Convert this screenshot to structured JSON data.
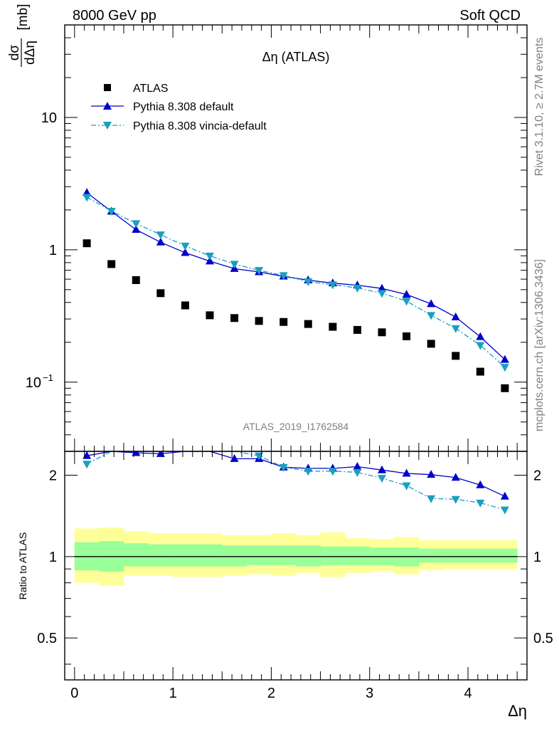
{
  "header": {
    "energy": "8000 GeV pp",
    "category": "Soft QCD"
  },
  "side_text": {
    "rivet": "Rivet 3.1.10, ≥ 2.7M events",
    "mcplots": "mcplots.cern.ch [arXiv:1306.3436]"
  },
  "chart_data": {
    "type": "line",
    "title": "Δη (ATLAS)",
    "analysis_id": "ATLAS_2019_I1762584",
    "xlabel": "Δη",
    "ylabel": "dσ/dΔη [mb]",
    "ylabel_parts": {
      "num": "dσ",
      "den": "dΔη",
      "unit": "[mb]"
    },
    "ratio_ylabel": "Ratio to ATLAS",
    "xlim": [
      -0.1,
      4.6
    ],
    "ylim": [
      0.03,
      50
    ],
    "yscale": "log",
    "ratio_ylim": [
      0.35,
      2.45
    ],
    "ratio_yscale": "log",
    "x_ticks": [
      {
        "value": 0,
        "label": "0"
      },
      {
        "value": 1,
        "label": "1"
      },
      {
        "value": 2,
        "label": "2"
      },
      {
        "value": 3,
        "label": "3"
      },
      {
        "value": 4,
        "label": "4"
      }
    ],
    "y_ticks": [
      {
        "value": 10,
        "label": "10"
      },
      {
        "value": 1,
        "label": "1"
      },
      {
        "value": 0.1,
        "label": "10",
        "sup": "−1"
      }
    ],
    "ratio_ticks": [
      {
        "value": 2,
        "label": "2"
      },
      {
        "value": 1,
        "label": "1"
      },
      {
        "value": 0.5,
        "label": "0.5"
      }
    ],
    "x": [
      0.125,
      0.375,
      0.625,
      0.875,
      1.125,
      1.375,
      1.625,
      1.875,
      2.125,
      2.375,
      2.625,
      2.875,
      3.125,
      3.375,
      3.625,
      3.875,
      4.125,
      4.375
    ],
    "bin_edges": [
      0,
      0.25,
      0.5,
      0.75,
      1.0,
      1.25,
      1.5,
      1.75,
      2.0,
      2.25,
      2.5,
      2.75,
      3.0,
      3.25,
      3.5,
      3.75,
      4.0,
      4.25,
      4.5
    ],
    "series": [
      {
        "name": "ATLAS",
        "style": "square",
        "color": "#000000",
        "values": [
          1.12,
          0.78,
          0.59,
          0.47,
          0.38,
          0.32,
          0.305,
          0.29,
          0.285,
          0.275,
          0.262,
          0.248,
          0.238,
          0.222,
          0.195,
          0.158,
          0.12,
          0.09
        ]
      },
      {
        "name": "Pythia 8.308 default",
        "style": "triangle-up",
        "color": "#0000cc",
        "values": [
          2.7,
          1.95,
          1.42,
          1.14,
          0.95,
          0.82,
          0.72,
          0.68,
          0.63,
          0.59,
          0.56,
          0.54,
          0.51,
          0.46,
          0.39,
          0.31,
          0.22,
          0.148
        ]
      },
      {
        "name": "Pythia 8.308 vincia-default",
        "style": "triangle-down",
        "color": "#1a9fc0",
        "values": [
          2.5,
          1.96,
          1.58,
          1.3,
          1.07,
          0.9,
          0.78,
          0.7,
          0.64,
          0.575,
          0.545,
          0.515,
          0.47,
          0.41,
          0.32,
          0.255,
          0.19,
          0.13
        ]
      }
    ],
    "ratio_series": [
      {
        "name": "Pythia 8.308 default",
        "color": "#0000cc",
        "style": "triangle-up",
        "values": [
          2.36,
          2.47,
          2.42,
          2.4,
          2.47,
          2.52,
          2.3,
          2.3,
          2.14,
          2.12,
          2.12,
          2.15,
          2.09,
          2.03,
          2.01,
          1.96,
          1.84,
          1.67
        ]
      },
      {
        "name": "Pythia 8.308 vincia-default",
        "color": "#1a9fc0",
        "style": "triangle-down",
        "values": [
          2.2,
          2.48,
          2.65,
          2.7,
          2.8,
          2.8,
          2.55,
          2.36,
          2.14,
          2.07,
          2.07,
          2.05,
          1.95,
          1.83,
          1.64,
          1.63,
          1.58,
          1.49
        ]
      }
    ],
    "ratio_reference": 1,
    "uncertainty_bands": {
      "stat_color": "#99ff99",
      "total_color": "#ffff99",
      "stat": [
        [
          0.89,
          1.13
        ],
        [
          0.88,
          1.14
        ],
        [
          0.92,
          1.12
        ],
        [
          0.92,
          1.11
        ],
        [
          0.92,
          1.11
        ],
        [
          0.92,
          1.11
        ],
        [
          0.92,
          1.1
        ],
        [
          0.93,
          1.1
        ],
        [
          0.93,
          1.1
        ],
        [
          0.92,
          1.1
        ],
        [
          0.93,
          1.09
        ],
        [
          0.93,
          1.09
        ],
        [
          0.93,
          1.08
        ],
        [
          0.92,
          1.08
        ],
        [
          0.95,
          1.07
        ],
        [
          0.95,
          1.07
        ],
        [
          0.95,
          1.07
        ],
        [
          0.95,
          1.07
        ]
      ],
      "total": [
        [
          0.8,
          1.27
        ],
        [
          0.78,
          1.28
        ],
        [
          0.85,
          1.24
        ],
        [
          0.85,
          1.22
        ],
        [
          0.84,
          1.22
        ],
        [
          0.84,
          1.22
        ],
        [
          0.85,
          1.2
        ],
        [
          0.86,
          1.2
        ],
        [
          0.85,
          1.22
        ],
        [
          0.87,
          1.2
        ],
        [
          0.84,
          1.23
        ],
        [
          0.87,
          1.17
        ],
        [
          0.88,
          1.16
        ],
        [
          0.86,
          1.18
        ],
        [
          0.89,
          1.15
        ],
        [
          0.9,
          1.15
        ],
        [
          0.9,
          1.15
        ],
        [
          0.9,
          1.15
        ]
      ]
    },
    "legend": {
      "placement": "top-left",
      "entries": [
        "ATLAS",
        "Pythia 8.308 default",
        "Pythia 8.308 vincia-default"
      ]
    }
  }
}
